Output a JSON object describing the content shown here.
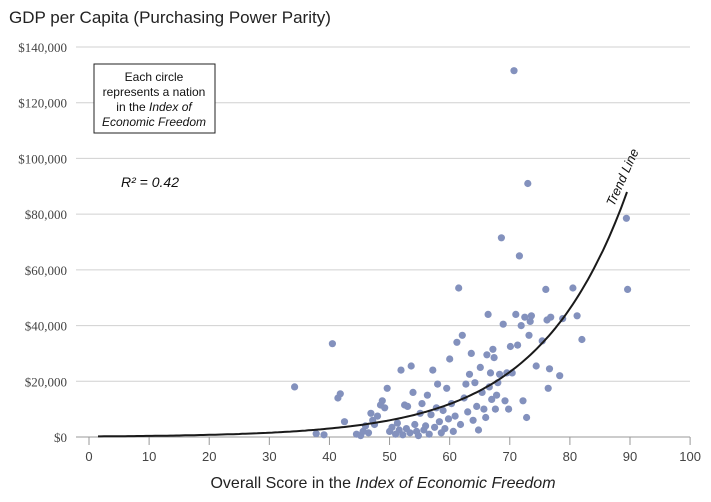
{
  "chart_data": {
    "type": "scatter",
    "title": "GDP per Capita (Purchasing Power Parity)",
    "xlabel": {
      "prefix": "Overall Score in the ",
      "emphasis": "Index of Economic Freedom"
    },
    "ylabel": "",
    "xlim": [
      0,
      100
    ],
    "ylim": [
      0,
      140000
    ],
    "x_ticks": [
      "0",
      "10",
      "20",
      "30",
      "40",
      "50",
      "60",
      "70",
      "80",
      "90",
      "100"
    ],
    "y_ticks": [
      "$0",
      "$20,000",
      "$40,000",
      "$60,000",
      "$80,000",
      "$100,000",
      "$120,000",
      "$140,000"
    ],
    "grid": "horizontal",
    "annotation": {
      "lines": [
        {
          "plain": "Each circle"
        },
        {
          "plain": "represents a nation"
        },
        {
          "plain": "in the ",
          "italic": "Index of"
        },
        {
          "italic": "Economic Freedom"
        }
      ]
    },
    "r_squared": "R² = 0.42",
    "trend_label": "Trend Line",
    "trend": {
      "a": 200,
      "b": 0.068
    },
    "points": [
      [
        34.2,
        18000
      ],
      [
        37.8,
        1200
      ],
      [
        39.1,
        800
      ],
      [
        40.5,
        33500
      ],
      [
        41.4,
        14000
      ],
      [
        41.8,
        15500
      ],
      [
        42.5,
        5500
      ],
      [
        44.5,
        1000
      ],
      [
        45.2,
        500
      ],
      [
        45.6,
        2000
      ],
      [
        46.0,
        4000
      ],
      [
        46.5,
        1500
      ],
      [
        46.9,
        8500
      ],
      [
        47.2,
        6000
      ],
      [
        47.5,
        4500
      ],
      [
        48.0,
        7500
      ],
      [
        48.5,
        11500
      ],
      [
        48.8,
        13000
      ],
      [
        49.2,
        10500
      ],
      [
        49.6,
        17500
      ],
      [
        50.0,
        2000
      ],
      [
        50.4,
        3500
      ],
      [
        51.0,
        1000
      ],
      [
        51.3,
        5000
      ],
      [
        51.6,
        2500
      ],
      [
        51.9,
        24000
      ],
      [
        52.2,
        800
      ],
      [
        52.5,
        11500
      ],
      [
        52.8,
        3000
      ],
      [
        53.0,
        11000
      ],
      [
        53.4,
        1500
      ],
      [
        53.6,
        25500
      ],
      [
        53.9,
        16000
      ],
      [
        54.2,
        4500
      ],
      [
        54.5,
        2000
      ],
      [
        54.8,
        500
      ],
      [
        55.1,
        8500
      ],
      [
        55.4,
        12000
      ],
      [
        55.7,
        2500
      ],
      [
        56.0,
        4000
      ],
      [
        56.3,
        15000
      ],
      [
        56.6,
        1000
      ],
      [
        56.9,
        8000
      ],
      [
        57.2,
        24000
      ],
      [
        57.5,
        3500
      ],
      [
        57.8,
        10500
      ],
      [
        58.0,
        19000
      ],
      [
        58.3,
        5500
      ],
      [
        58.6,
        1500
      ],
      [
        58.9,
        9500
      ],
      [
        59.2,
        3000
      ],
      [
        59.5,
        17500
      ],
      [
        59.8,
        6500
      ],
      [
        60.0,
        28000
      ],
      [
        60.3,
        12000
      ],
      [
        60.6,
        2000
      ],
      [
        60.9,
        7500
      ],
      [
        61.2,
        34000
      ],
      [
        61.5,
        53500
      ],
      [
        61.8,
        4500
      ],
      [
        62.1,
        36500
      ],
      [
        62.4,
        14000
      ],
      [
        62.7,
        19000
      ],
      [
        63.0,
        9000
      ],
      [
        63.3,
        22500
      ],
      [
        63.6,
        30000
      ],
      [
        63.9,
        6000
      ],
      [
        64.2,
        19500
      ],
      [
        64.5,
        11000
      ],
      [
        64.8,
        2500
      ],
      [
        65.1,
        25000
      ],
      [
        65.4,
        16000
      ],
      [
        65.7,
        10000
      ],
      [
        66.0,
        7000
      ],
      [
        66.2,
        29500
      ],
      [
        66.4,
        44000
      ],
      [
        66.6,
        18000
      ],
      [
        66.8,
        23000
      ],
      [
        67.0,
        13500
      ],
      [
        67.2,
        31500
      ],
      [
        67.4,
        28500
      ],
      [
        67.6,
        10000
      ],
      [
        67.8,
        15000
      ],
      [
        68.0,
        19500
      ],
      [
        68.3,
        22500
      ],
      [
        68.6,
        71500
      ],
      [
        68.9,
        40500
      ],
      [
        69.2,
        13000
      ],
      [
        69.5,
        23000
      ],
      [
        69.8,
        10000
      ],
      [
        70.1,
        32500
      ],
      [
        70.4,
        23000
      ],
      [
        70.7,
        131500
      ],
      [
        71.0,
        44000
      ],
      [
        71.3,
        33000
      ],
      [
        71.6,
        65000
      ],
      [
        71.9,
        40000
      ],
      [
        72.2,
        13000
      ],
      [
        72.5,
        43000
      ],
      [
        72.8,
        7000
      ],
      [
        73.0,
        91000
      ],
      [
        73.2,
        36500
      ],
      [
        73.4,
        41500
      ],
      [
        73.6,
        43500
      ],
      [
        74.4,
        25500
      ],
      [
        75.4,
        34500
      ],
      [
        76.0,
        53000
      ],
      [
        76.2,
        42000
      ],
      [
        76.4,
        17500
      ],
      [
        76.6,
        24500
      ],
      [
        76.8,
        43000
      ],
      [
        78.3,
        22000
      ],
      [
        78.8,
        42500
      ],
      [
        80.5,
        53500
      ],
      [
        81.2,
        43500
      ],
      [
        82.0,
        35000
      ],
      [
        89.4,
        78500
      ],
      [
        89.6,
        53000
      ]
    ]
  }
}
